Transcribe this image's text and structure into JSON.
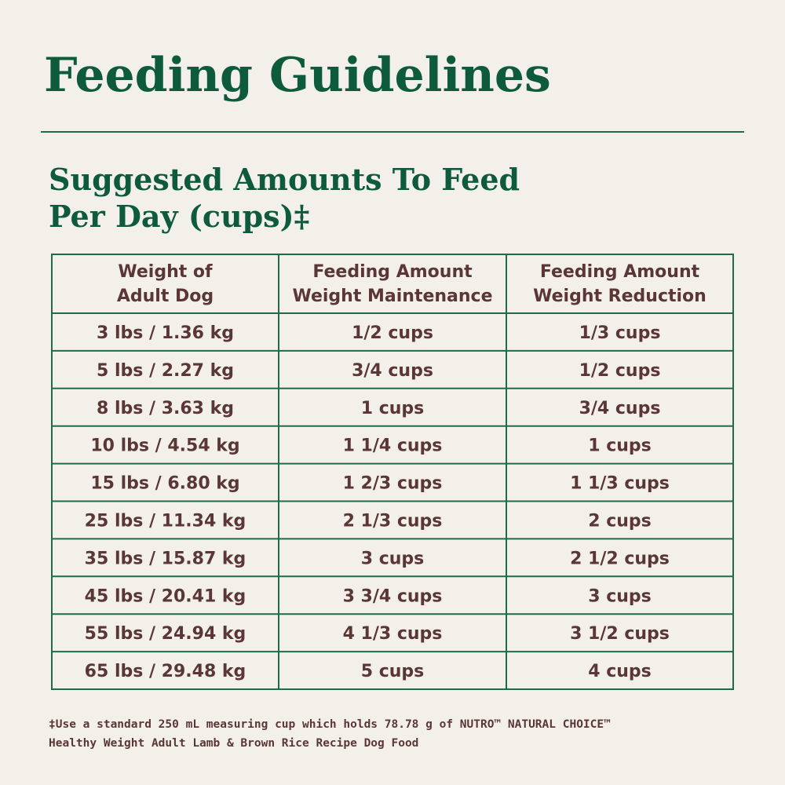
{
  "header": {
    "title": "Feeding Guidelines",
    "subtitle": [
      "Suggested Amounts To Feed",
      "Per Day (cups)‡"
    ]
  },
  "table": {
    "columns": [
      [
        "Weight of",
        "Adult Dog"
      ],
      [
        "Feeding Amount",
        "Weight Maintenance"
      ],
      [
        "Feeding Amount",
        "Weight Reduction"
      ]
    ],
    "rows": [
      [
        "3 lbs / 1.36 kg",
        "1/2 cups",
        "1/3 cups"
      ],
      [
        "5 lbs / 2.27 kg",
        "3/4 cups",
        "1/2 cups"
      ],
      [
        "8 lbs / 3.63 kg",
        "1 cups",
        "3/4 cups"
      ],
      [
        "10 lbs / 4.54 kg",
        "1 1/4 cups",
        "1 cups"
      ],
      [
        "15 lbs / 6.80 kg",
        "1 2/3 cups",
        "1 1/3 cups"
      ],
      [
        "25 lbs / 11.34 kg",
        "2 1/3 cups",
        "2 cups"
      ],
      [
        "35 lbs / 15.87 kg",
        "3 cups",
        "2 1/2 cups"
      ],
      [
        "45 lbs / 20.41 kg",
        "3 3/4 cups",
        "3 cups"
      ],
      [
        "55 lbs / 24.94 kg",
        "4 1/3 cups",
        "3 1/2 cups"
      ],
      [
        "65 lbs / 29.48 kg",
        "5 cups",
        "4 cups"
      ]
    ]
  },
  "footnote": [
    "‡Use a standard 250 mL measuring cup which holds 78.78 g of NUTRO™ NATURAL CHOICE™",
    "Healthy Weight Adult Lamb & Brown Rice Recipe Dog Food"
  ]
}
